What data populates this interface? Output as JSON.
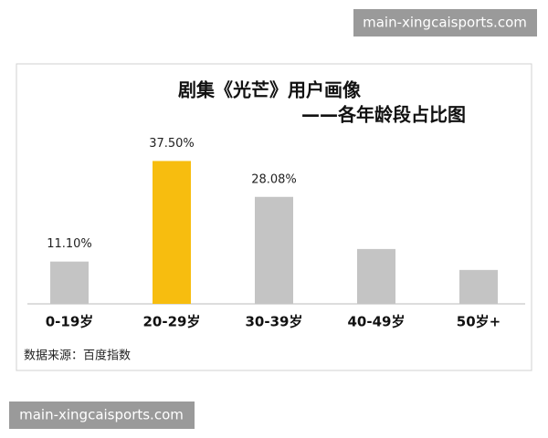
{
  "chart_data": {
    "type": "bar",
    "title": "剧集《光芒》用户画像",
    "subtitle": "——各年龄段占比图",
    "categories": [
      "0-19岁",
      "20-29岁",
      "30-39岁",
      "40-49岁",
      "50岁+"
    ],
    "values": [
      11.1,
      37.5,
      28.08,
      14.4,
      8.9
    ],
    "value_labels": [
      "11.10%",
      "37.50%",
      "28.08%",
      null,
      null
    ],
    "colors": [
      "#c4c4c4",
      "#f7bd0f",
      "#c4c4c4",
      "#c4c4c4",
      "#c4c4c4"
    ],
    "ylim": [
      0,
      40
    ],
    "source": "数据来源：百度指数"
  },
  "watermarks": [
    "main-xingcaisports.com",
    "main-xingcaisports.com"
  ]
}
